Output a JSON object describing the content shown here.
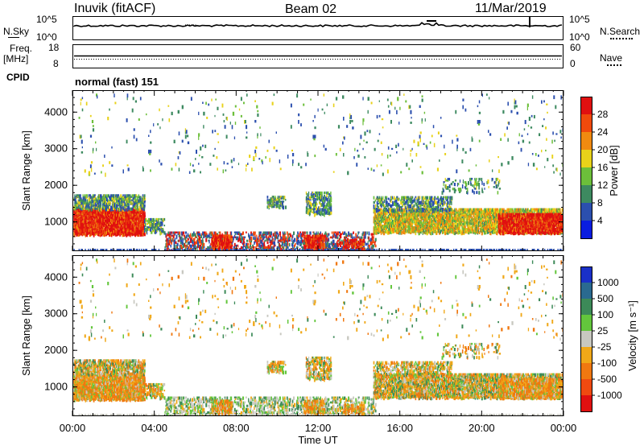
{
  "header": {
    "station": "Inuvik (fitACF)",
    "beam": "Beam 02",
    "date": "11/Mar/2019"
  },
  "noise_panel": {
    "left_label": "N.Sky",
    "left_ticks": [
      "10^5",
      "10^0"
    ],
    "right_ticks": [
      "10^5",
      "10^0"
    ],
    "right_label": "N.Search"
  },
  "freq_panel": {
    "left_label_1": "Freq.",
    "left_label_2": "[MHz]",
    "left_ticks": [
      "18",
      "8"
    ],
    "right_ticks": [
      "60",
      "0"
    ],
    "right_label": "Nave"
  },
  "cpid_panel": {
    "left_label": "CPID",
    "value": "normal (fast) 151"
  },
  "chart_data": [
    {
      "type": "heatmap",
      "title": "",
      "xlabel": "",
      "ylabel": "Slant Range [km]",
      "ylim": [
        200,
        4600
      ],
      "yticks": [
        "1000",
        "2000",
        "3000",
        "4000"
      ],
      "colorbar_label": "Power [dB]",
      "colorbar_ticks": [
        "4",
        "8",
        "12",
        "16",
        "20",
        "24",
        "28"
      ],
      "colors": [
        "#0a1de0",
        "#2b4fae",
        "#3d8a60",
        "#6cbf3a",
        "#e8d21a",
        "#f08a10",
        "#f04a0c",
        "#e01010"
      ]
    },
    {
      "type": "heatmap",
      "title": "",
      "xlabel": "Time UT",
      "ylabel": "Slant Range [km]",
      "ylim": [
        200,
        4600
      ],
      "yticks": [
        "1000",
        "2000",
        "3000",
        "4000"
      ],
      "xticks": [
        "00:00",
        "04:00",
        "08:00",
        "12:00",
        "16:00",
        "20:00",
        "00:00"
      ],
      "colorbar_label": "Velocity [m s⁻¹]",
      "colorbar_ticks": [
        "1000",
        "500",
        "100",
        "25",
        "-25",
        "-100",
        "-500",
        "-1000"
      ],
      "colors": [
        "#1a30c8",
        "#2a6a90",
        "#3c8a58",
        "#63c63c",
        "#c8c8c0",
        "#f0a818",
        "#f07810",
        "#f04a10",
        "#e01010"
      ]
    }
  ]
}
